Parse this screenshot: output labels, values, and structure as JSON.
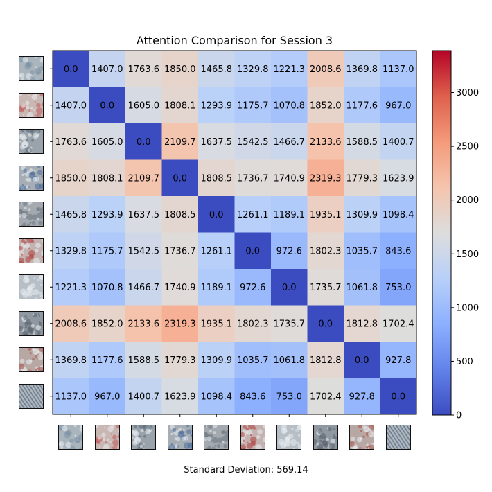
{
  "chart_data": {
    "type": "heatmap",
    "title": "Attention Comparison for Session 3",
    "footer": "Standard Deviation: 569.14",
    "colormap": "coolwarm",
    "color_range": [
      0,
      3390
    ],
    "colorbar_ticks": [
      0,
      500,
      1000,
      1500,
      2000,
      2500,
      3000
    ],
    "matrix": [
      [
        0.0,
        1407.0,
        1763.6,
        1850.0,
        1465.8,
        1329.8,
        1221.3,
        2008.6,
        1369.8,
        1137.0
      ],
      [
        1407.0,
        0.0,
        1605.0,
        1808.1,
        1293.9,
        1175.7,
        1070.8,
        1852.0,
        1177.6,
        967.0
      ],
      [
        1763.6,
        1605.0,
        0.0,
        2109.7,
        1637.5,
        1542.5,
        1466.7,
        2133.6,
        1588.5,
        1400.7
      ],
      [
        1850.0,
        1808.1,
        2109.7,
        0.0,
        1808.5,
        1736.7,
        1740.9,
        2319.3,
        1779.3,
        1623.9
      ],
      [
        1465.8,
        1293.9,
        1637.5,
        1808.5,
        0.0,
        1261.1,
        1189.1,
        1935.1,
        1309.9,
        1098.4
      ],
      [
        1329.8,
        1175.7,
        1542.5,
        1736.7,
        1261.1,
        0.0,
        972.6,
        1802.3,
        1035.7,
        843.6
      ],
      [
        1221.3,
        1070.8,
        1466.7,
        1740.9,
        1189.1,
        972.6,
        0.0,
        1735.7,
        1061.8,
        753.0
      ],
      [
        2008.6,
        1852.0,
        2133.6,
        2319.3,
        1935.1,
        1802.3,
        1735.7,
        0.0,
        1812.8,
        1702.4
      ],
      [
        1369.8,
        1177.6,
        1588.5,
        1779.3,
        1309.9,
        1035.7,
        1061.8,
        1812.8,
        0.0,
        927.8
      ],
      [
        1137.0,
        967.0,
        1400.7,
        1623.9,
        1098.4,
        843.6,
        753.0,
        1702.4,
        927.8,
        0.0
      ]
    ],
    "tick_thumbnails": [
      {
        "icon": "gray-blue-texture-thumbnail",
        "base": "#a9b4bd",
        "accent": "#7d93a6"
      },
      {
        "icon": "pink-red-texture-thumbnail",
        "base": "#c9b7b4",
        "accent": "#c05a58"
      },
      {
        "icon": "gray-dark-texture-thumbnail",
        "base": "#9aa3ab",
        "accent": "#5a6978"
      },
      {
        "icon": "gray-blue-dots-thumbnail",
        "base": "#a6adb5",
        "accent": "#4f6f9a"
      },
      {
        "icon": "gray-texture-thumbnail",
        "base": "#a3a9af",
        "accent": "#6c7680"
      },
      {
        "icon": "red-gray-texture-thumbnail",
        "base": "#c4b2b0",
        "accent": "#b0403e"
      },
      {
        "icon": "white-blue-texture-thumbnail",
        "base": "#b7bec6",
        "accent": "#e6ecf2"
      },
      {
        "icon": "dark-gray-texture-thumbnail",
        "base": "#8f98a1",
        "accent": "#5b6570"
      },
      {
        "icon": "red-brown-texture-thumbnail",
        "base": "#b8a8a4",
        "accent": "#a5524a"
      },
      {
        "icon": "diagonal-stripe-thumbnail",
        "base": "#aeb6be",
        "accent": "#6e7f91"
      }
    ]
  }
}
